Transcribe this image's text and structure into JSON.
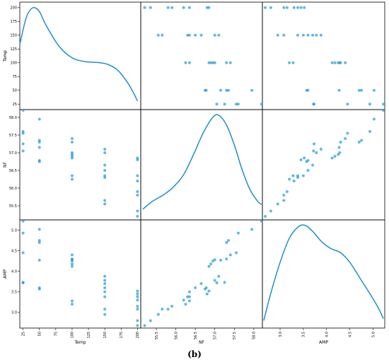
{
  "figure": {
    "caption": "(b)"
  },
  "colors": {
    "point": "#1f9ad6",
    "kde": "#1f8fc9",
    "frame": "#000000"
  },
  "chart_data": {
    "type": "scatter-matrix",
    "variables": [
      {
        "name": "Temp",
        "ylim": [
          15,
          210
        ],
        "xlim": [
          20,
          205
        ],
        "ticks": [
          25,
          50,
          75,
          100,
          125,
          150,
          175,
          200
        ],
        "tick_labels": [
          "25",
          "50",
          "75",
          "100",
          "125",
          "150",
          "175",
          "200"
        ],
        "y_tick_labels": [
          "25",
          "50",
          "75",
          "100",
          "125",
          "150",
          "175",
          "200"
        ]
      },
      {
        "name": "NF",
        "ylim": [
          55.1,
          58.22
        ],
        "xlim": [
          55.1,
          58.22
        ],
        "ticks": [
          55.5,
          56.0,
          56.5,
          57.0,
          57.5,
          58.0
        ],
        "tick_labels": [
          "55.5",
          "56.0",
          "56.5",
          "57.0",
          "57.5",
          "58.0"
        ],
        "y_tick_labels": [
          "55.5",
          "56.0",
          "56.5",
          "57.0",
          "57.5",
          "58.0"
        ]
      },
      {
        "name": "AMP",
        "ylim": [
          2.62,
          5.25
        ],
        "xlim": [
          2.62,
          5.25
        ],
        "ticks": [
          3.0,
          3.5,
          4.0,
          4.5,
          5.0
        ],
        "tick_labels": [
          "3.0",
          "3.5",
          "4.0",
          "4.5",
          "5.0"
        ],
        "y_tick_labels": [
          "3.0",
          "3.5",
          "4.0",
          "4.5",
          "5.0"
        ]
      }
    ],
    "observations": [
      {
        "Temp": 25,
        "NF": 58.2,
        "AMP": 5.22
      },
      {
        "Temp": 25,
        "NF": 57.6,
        "AMP": 4.93
      },
      {
        "Temp": 25,
        "NF": 57.55,
        "AMP": 4.45
      },
      {
        "Temp": 25,
        "NF": 57.25,
        "AMP": 3.73
      },
      {
        "Temp": 25,
        "NF": 57.05,
        "AMP": 3.72
      },
      {
        "Temp": 50,
        "NF": 57.95,
        "AMP": 5.02
      },
      {
        "Temp": 50,
        "NF": 57.35,
        "AMP": 4.75
      },
      {
        "Temp": 50,
        "NF": 57.3,
        "AMP": 4.7
      },
      {
        "Temp": 50,
        "NF": 57.15,
        "AMP": 4.27
      },
      {
        "Temp": 50,
        "NF": 56.78,
        "AMP": 3.6
      },
      {
        "Temp": 50,
        "NF": 56.75,
        "AMP": 3.57
      },
      {
        "Temp": 100,
        "NF": 57.4,
        "AMP": 4.4
      },
      {
        "Temp": 100,
        "NF": 57.3,
        "AMP": 4.3
      },
      {
        "Temp": 100,
        "NF": 57.0,
        "AMP": 4.28
      },
      {
        "Temp": 100,
        "NF": 56.95,
        "AMP": 4.25
      },
      {
        "Temp": 100,
        "NF": 56.9,
        "AMP": 4.18
      },
      {
        "Temp": 100,
        "NF": 56.85,
        "AMP": 4.12
      },
      {
        "Temp": 100,
        "NF": 56.35,
        "AMP": 3.28
      },
      {
        "Temp": 100,
        "NF": 56.25,
        "AMP": 3.2
      },
      {
        "Temp": 150,
        "NF": 57.1,
        "AMP": 3.88
      },
      {
        "Temp": 150,
        "NF": 57.0,
        "AMP": 3.78
      },
      {
        "Temp": 150,
        "NF": 56.65,
        "AMP": 3.7
      },
      {
        "Temp": 150,
        "NF": 56.5,
        "AMP": 3.6
      },
      {
        "Temp": 150,
        "NF": 56.35,
        "AMP": 3.5
      },
      {
        "Temp": 150,
        "NF": 56.3,
        "AMP": 3.38
      },
      {
        "Temp": 150,
        "NF": 55.65,
        "AMP": 3.08
      },
      {
        "Temp": 150,
        "NF": 55.55,
        "AMP": 2.95
      },
      {
        "Temp": 200,
        "NF": 56.85,
        "AMP": 3.52
      },
      {
        "Temp": 200,
        "NF": 56.8,
        "AMP": 3.45
      },
      {
        "Temp": 200,
        "NF": 56.35,
        "AMP": 3.38
      },
      {
        "Temp": 200,
        "NF": 56.2,
        "AMP": 3.3
      },
      {
        "Temp": 200,
        "NF": 55.9,
        "AMP": 3.15
      },
      {
        "Temp": 200,
        "NF": 55.8,
        "AMP": 3.08
      },
      {
        "Temp": 200,
        "NF": 55.35,
        "AMP": 2.8
      },
      {
        "Temp": 200,
        "NF": 55.2,
        "AMP": 2.68
      }
    ],
    "diagonal": "kde",
    "kde_curves": {
      "Temp": [
        [
          20,
          0.62
        ],
        [
          30,
          0.9
        ],
        [
          40,
          1.0
        ],
        [
          50,
          0.96
        ],
        [
          60,
          0.82
        ],
        [
          80,
          0.6
        ],
        [
          100,
          0.48
        ],
        [
          120,
          0.44
        ],
        [
          140,
          0.43
        ],
        [
          155,
          0.41
        ],
        [
          170,
          0.35
        ],
        [
          185,
          0.22
        ],
        [
          195,
          0.1
        ],
        [
          200,
          0.03
        ]
      ],
      "NF": [
        [
          55.15,
          0.05
        ],
        [
          55.4,
          0.13
        ],
        [
          55.7,
          0.2
        ],
        [
          55.95,
          0.28
        ],
        [
          56.2,
          0.4
        ],
        [
          56.45,
          0.6
        ],
        [
          56.7,
          0.82
        ],
        [
          56.95,
          0.98
        ],
        [
          57.1,
          1.0
        ],
        [
          57.3,
          0.9
        ],
        [
          57.5,
          0.7
        ],
        [
          57.7,
          0.45
        ],
        [
          57.9,
          0.25
        ],
        [
          58.1,
          0.13
        ],
        [
          58.2,
          0.1
        ]
      ],
      "AMP": [
        [
          2.65,
          0.02
        ],
        [
          2.8,
          0.3
        ],
        [
          3.0,
          0.62
        ],
        [
          3.2,
          0.87
        ],
        [
          3.4,
          0.99
        ],
        [
          3.55,
          1.0
        ],
        [
          3.7,
          0.94
        ],
        [
          3.9,
          0.83
        ],
        [
          4.1,
          0.76
        ],
        [
          4.3,
          0.72
        ],
        [
          4.5,
          0.62
        ],
        [
          4.7,
          0.47
        ],
        [
          4.9,
          0.32
        ],
        [
          5.1,
          0.16
        ],
        [
          5.22,
          0.04
        ]
      ]
    },
    "grid": false,
    "legend": "none"
  }
}
